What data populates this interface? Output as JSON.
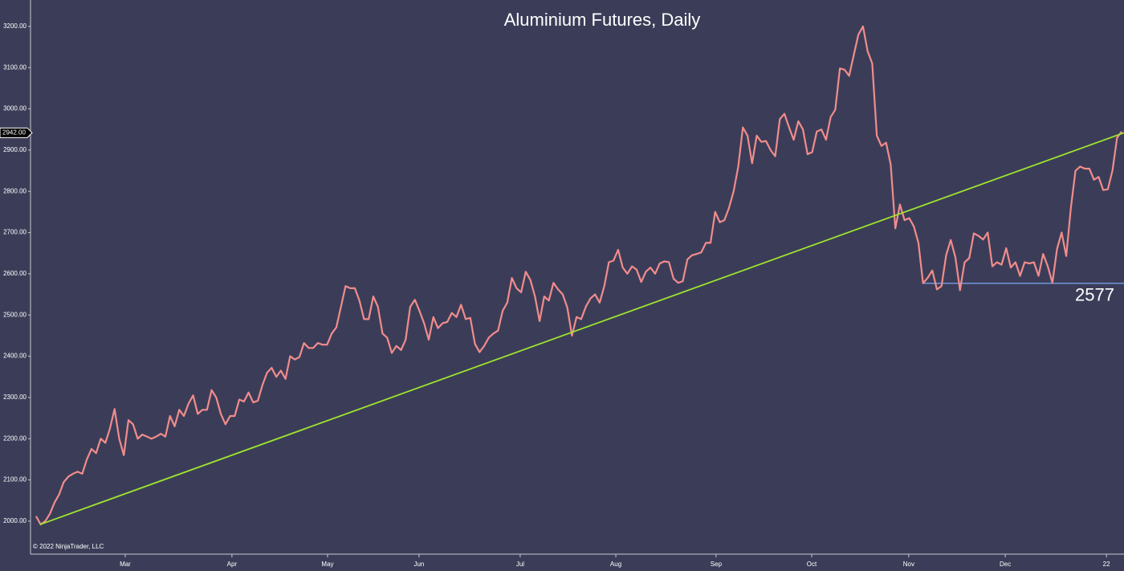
{
  "chart_data": {
    "type": "line",
    "title": "Aluminium Futures, Daily",
    "copyright": "© 2022 NinjaTrader, LLC",
    "x": [
      0,
      1,
      2,
      3,
      4,
      5,
      6,
      7,
      8,
      9,
      10,
      11,
      12,
      13,
      14,
      15,
      16,
      17,
      18,
      19,
      20,
      21,
      22,
      23,
      24,
      25,
      26,
      27,
      28,
      29,
      30,
      31,
      32,
      33,
      34,
      35,
      36,
      37,
      38,
      39,
      40,
      41,
      42,
      43,
      44,
      45,
      46,
      47,
      48,
      49,
      50,
      51,
      52,
      53,
      54,
      55,
      56,
      57,
      58,
      59,
      60,
      61,
      62,
      63,
      64,
      65,
      66,
      67,
      68,
      69,
      70,
      71,
      72,
      73,
      74,
      75,
      76,
      77,
      78,
      79,
      80,
      81,
      82,
      83,
      84,
      85,
      86,
      87,
      88,
      89,
      90,
      91,
      92,
      93,
      94,
      95,
      96,
      97,
      98,
      99,
      100,
      101,
      102,
      103,
      104,
      105,
      106,
      107,
      108,
      109,
      110,
      111,
      112,
      113,
      114,
      115,
      116,
      117,
      118,
      119,
      120,
      121,
      122,
      123,
      124,
      125,
      126,
      127,
      128,
      129,
      130,
      131,
      132,
      133,
      134,
      135,
      136,
      137,
      138,
      139,
      140,
      141,
      142,
      143,
      144,
      145,
      146,
      147,
      148,
      149,
      150,
      151,
      152,
      153,
      154,
      155,
      156,
      157,
      158,
      159,
      160,
      161,
      162,
      163,
      164,
      165,
      166,
      167,
      168,
      169,
      170,
      171,
      172,
      173,
      174,
      175,
      176,
      177,
      178,
      179,
      180,
      181,
      182,
      183,
      184,
      185,
      186,
      187,
      188,
      189,
      190,
      191,
      192,
      193,
      194,
      195,
      196,
      197,
      198,
      199,
      200,
      201,
      202,
      203,
      204,
      205,
      206,
      207,
      208,
      209,
      210,
      211,
      212,
      213,
      214,
      215,
      216,
      217,
      218,
      219,
      220,
      221,
      222,
      223,
      224,
      225,
      226,
      227,
      228,
      229,
      230,
      231,
      232,
      233,
      234,
      235
    ],
    "values": [
      2012,
      1992,
      2000,
      2018,
      2045,
      2065,
      2095,
      2108,
      2115,
      2120,
      2115,
      2150,
      2175,
      2165,
      2200,
      2190,
      2225,
      2272,
      2200,
      2160,
      2245,
      2235,
      2200,
      2210,
      2205,
      2200,
      2205,
      2212,
      2205,
      2255,
      2230,
      2270,
      2255,
      2285,
      2305,
      2260,
      2270,
      2270,
      2318,
      2300,
      2260,
      2235,
      2255,
      2255,
      2295,
      2290,
      2312,
      2288,
      2292,
      2330,
      2360,
      2372,
      2350,
      2365,
      2345,
      2400,
      2392,
      2398,
      2432,
      2420,
      2420,
      2432,
      2428,
      2428,
      2455,
      2470,
      2520,
      2570,
      2565,
      2565,
      2535,
      2490,
      2490,
      2545,
      2520,
      2455,
      2445,
      2408,
      2425,
      2415,
      2440,
      2520,
      2537,
      2510,
      2480,
      2440,
      2495,
      2468,
      2480,
      2483,
      2505,
      2495,
      2525,
      2490,
      2493,
      2430,
      2410,
      2425,
      2445,
      2455,
      2462,
      2510,
      2530,
      2590,
      2565,
      2555,
      2605,
      2585,
      2545,
      2485,
      2545,
      2535,
      2578,
      2562,
      2550,
      2518,
      2450,
      2495,
      2490,
      2520,
      2540,
      2550,
      2530,
      2570,
      2628,
      2632,
      2658,
      2615,
      2600,
      2618,
      2610,
      2580,
      2605,
      2615,
      2600,
      2625,
      2630,
      2628,
      2588,
      2578,
      2582,
      2635,
      2645,
      2648,
      2652,
      2675,
      2675,
      2750,
      2725,
      2730,
      2760,
      2800,
      2860,
      2955,
      2935,
      2868,
      2935,
      2920,
      2922,
      2900,
      2885,
      2975,
      2988,
      2955,
      2925,
      2970,
      2950,
      2890,
      2895,
      2945,
      2950,
      2925,
      2980,
      2998,
      3098,
      3095,
      3080,
      3130,
      3180,
      3200,
      3140,
      3110,
      2935,
      2910,
      2918,
      2865,
      2710,
      2768,
      2730,
      2735,
      2715,
      2675,
      2577,
      2590,
      2608,
      2562,
      2570,
      2645,
      2682,
      2640,
      2560,
      2628,
      2638,
      2698,
      2692,
      2683,
      2700,
      2618,
      2628,
      2622,
      2662,
      2615,
      2628,
      2595,
      2628,
      2625,
      2628,
      2595,
      2648,
      2618,
      2578,
      2660,
      2700,
      2643,
      2760,
      2850,
      2860,
      2855,
      2855,
      2828,
      2835,
      2803,
      2805,
      2850,
      2930,
      2945
    ],
    "color": "#f28c8c",
    "xlim": [
      -1.2,
      235.5
    ],
    "ylim": [
      1920,
      3264
    ],
    "xticks": [
      {
        "value": 19.3,
        "label": "Mar"
      },
      {
        "value": 42.4,
        "label": "Apr"
      },
      {
        "value": 63.1,
        "label": "May"
      },
      {
        "value": 82.9,
        "label": "Jun"
      },
      {
        "value": 104.8,
        "label": "Jul"
      },
      {
        "value": 125.5,
        "label": "Aug"
      },
      {
        "value": 147.2,
        "label": "Sep"
      },
      {
        "value": 167.9,
        "label": "Oct"
      },
      {
        "value": 188.9,
        "label": "Nov"
      },
      {
        "value": 209.8,
        "label": "Dec"
      },
      {
        "value": 231.7,
        "label": "22"
      }
    ],
    "yticks": [
      {
        "value": 2000,
        "label": "2000.00"
      },
      {
        "value": 2100,
        "label": "2100.00"
      },
      {
        "value": 2200,
        "label": "2200.00"
      },
      {
        "value": 2300,
        "label": "2300.00"
      },
      {
        "value": 2400,
        "label": "2400.00"
      },
      {
        "value": 2500,
        "label": "2500.00"
      },
      {
        "value": 2600,
        "label": "2600.00"
      },
      {
        "value": 2700,
        "label": "2700.00"
      },
      {
        "value": 2800,
        "label": "2800.00"
      },
      {
        "value": 2900,
        "label": "2900.00"
      },
      {
        "value": 3000,
        "label": "3000.00"
      },
      {
        "value": 3100,
        "label": "3100.00"
      },
      {
        "value": 3200,
        "label": "3200.00"
      }
    ],
    "price_marker": {
      "value": 2942,
      "label": "2942.00"
    },
    "trendline": {
      "x": [
        0.9,
        235.5
      ],
      "y": [
        1992,
        2942
      ],
      "color": "#9ee52e"
    },
    "support": {
      "x": [
        192,
        235.5
      ],
      "value": 2577,
      "label": "2577",
      "color": "#6f95de"
    }
  }
}
